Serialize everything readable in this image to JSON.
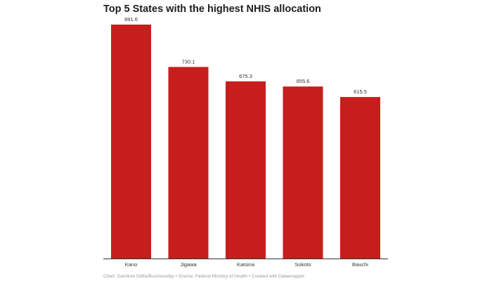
{
  "chart_data": {
    "type": "bar",
    "title": "Top 5 States with the highest NHIS allocation",
    "categories": [
      "Kano",
      "Jigawa",
      "Katsina",
      "Sokoto",
      "Bauchi"
    ],
    "values": [
      891.6,
      730.1,
      675.3,
      655.6,
      615.5
    ],
    "data_labels": [
      "891.6",
      "730.1",
      "675.3",
      "655.6",
      "615.5"
    ],
    "xlabel": "",
    "ylabel": "",
    "ylim": [
      0,
      891.6
    ],
    "grid": false,
    "bar_color": "#c71e1d"
  },
  "footer": "Chart: Damilola Odifa/Businessday • Source: Federal Ministry of Health • Created with Datawrapper"
}
